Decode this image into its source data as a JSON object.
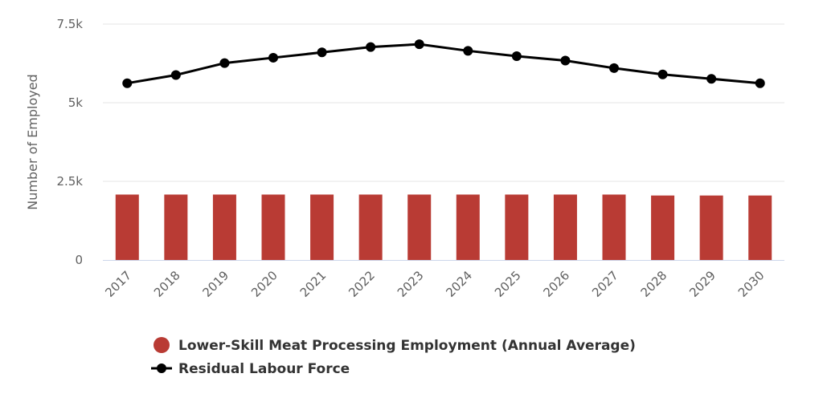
{
  "chart_data": {
    "type": "bar",
    "categories": [
      "2017",
      "2018",
      "2019",
      "2020",
      "2021",
      "2022",
      "2023",
      "2024",
      "2025",
      "2026",
      "2027",
      "2028",
      "2029",
      "2030"
    ],
    "ylabel": "Number of Employed",
    "ylim": [
      0,
      7500
    ],
    "yticks": [
      0,
      2500,
      5000,
      7500
    ],
    "ytick_labels": [
      "0",
      "2.5k",
      "5k",
      "7.5k"
    ],
    "grid": true,
    "legend_position": "bottom-center",
    "series": [
      {
        "name": "Lower-Skill Meat Processing Employment (Annual Average)",
        "type": "bar",
        "color": "#b93b34",
        "values": [
          2080,
          2080,
          2080,
          2080,
          2080,
          2080,
          2080,
          2080,
          2080,
          2080,
          2080,
          2050,
          2050,
          2050
        ]
      },
      {
        "name": "Residual Labour Force",
        "type": "line",
        "color": "#000000",
        "values": [
          5620,
          5880,
          6260,
          6430,
          6600,
          6770,
          6860,
          6650,
          6480,
          6340,
          6100,
          5900,
          5760,
          5620
        ]
      }
    ]
  }
}
